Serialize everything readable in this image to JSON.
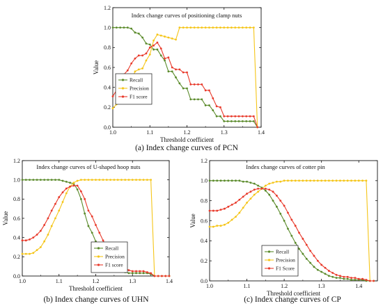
{
  "colors": {
    "recall": "#5a8a2a",
    "precision": "#f5c518",
    "f1": "#e8392a"
  },
  "chart_data": [
    {
      "type": "line",
      "title": "Index change curves of positioning clamp nuts",
      "caption": "(a) Index change curves of PCN",
      "xlabel": "Threshold coefficient",
      "ylabel": "Value",
      "xlim": [
        1.0,
        1.4
      ],
      "ylim": [
        0.0,
        1.2
      ],
      "xticks": [
        "1.0",
        "1.1",
        "1.2",
        "1.3",
        "1.4"
      ],
      "yticks": [
        "0.0",
        "0.2",
        "0.4",
        "0.6",
        "0.8",
        "1.0",
        "1.2"
      ],
      "legend_position": "left-middle",
      "grid": false,
      "series": [
        {
          "name": "Recall",
          "color_key": "recall",
          "x": [
            1.0,
            1.01,
            1.02,
            1.03,
            1.04,
            1.05,
            1.06,
            1.07,
            1.08,
            1.09,
            1.1,
            1.11,
            1.12,
            1.13,
            1.14,
            1.15,
            1.16,
            1.17,
            1.18,
            1.19,
            1.2,
            1.21,
            1.22,
            1.23,
            1.24,
            1.25,
            1.26,
            1.27,
            1.28,
            1.29,
            1.3,
            1.31,
            1.32,
            1.33,
            1.34,
            1.35,
            1.36,
            1.37,
            1.38,
            1.39
          ],
          "y": [
            1.0,
            1.0,
            1.0,
            1.0,
            1.0,
            0.99,
            0.95,
            0.94,
            0.9,
            0.84,
            0.83,
            0.78,
            0.78,
            0.72,
            0.67,
            0.56,
            0.56,
            0.5,
            0.44,
            0.39,
            0.39,
            0.28,
            0.28,
            0.28,
            0.28,
            0.22,
            0.22,
            0.17,
            0.11,
            0.11,
            0.06,
            0.06,
            0.06,
            0.06,
            0.06,
            0.06,
            0.06,
            0.06,
            0.06,
            0.0
          ]
        },
        {
          "name": "Precision",
          "color_key": "precision",
          "x": [
            1.0,
            1.01,
            1.02,
            1.03,
            1.04,
            1.05,
            1.06,
            1.07,
            1.08,
            1.09,
            1.1,
            1.11,
            1.12,
            1.13,
            1.14,
            1.15,
            1.16,
            1.17,
            1.18,
            1.19,
            1.2,
            1.21,
            1.22,
            1.23,
            1.24,
            1.25,
            1.26,
            1.27,
            1.28,
            1.29,
            1.3,
            1.31,
            1.32,
            1.33,
            1.34,
            1.35,
            1.36,
            1.37,
            1.38,
            1.39
          ],
          "y": [
            0.19,
            0.23,
            0.29,
            0.37,
            0.4,
            0.47,
            0.56,
            0.58,
            0.59,
            0.67,
            0.73,
            0.87,
            0.93,
            0.92,
            0.91,
            0.9,
            0.89,
            0.88,
            1.0,
            1.0,
            1.0,
            1.0,
            1.0,
            1.0,
            1.0,
            1.0,
            1.0,
            1.0,
            1.0,
            1.0,
            1.0,
            1.0,
            1.0,
            1.0,
            1.0,
            1.0,
            1.0,
            1.0,
            1.0,
            0.0
          ]
        },
        {
          "name": "F1 score",
          "color_key": "f1",
          "x": [
            1.0,
            1.01,
            1.02,
            1.03,
            1.04,
            1.05,
            1.06,
            1.07,
            1.08,
            1.09,
            1.1,
            1.11,
            1.12,
            1.13,
            1.14,
            1.15,
            1.16,
            1.17,
            1.18,
            1.19,
            1.2,
            1.21,
            1.22,
            1.23,
            1.24,
            1.25,
            1.26,
            1.27,
            1.28,
            1.29,
            1.3,
            1.31,
            1.32,
            1.33,
            1.34,
            1.35,
            1.36,
            1.37,
            1.38,
            1.39
          ],
          "y": [
            0.31,
            0.37,
            0.44,
            0.53,
            0.57,
            0.64,
            0.69,
            0.72,
            0.72,
            0.74,
            0.8,
            0.82,
            0.85,
            0.79,
            0.69,
            0.7,
            0.6,
            0.58,
            0.58,
            0.55,
            0.55,
            0.43,
            0.43,
            0.43,
            0.43,
            0.37,
            0.37,
            0.29,
            0.21,
            0.2,
            0.11,
            0.11,
            0.11,
            0.11,
            0.11,
            0.11,
            0.11,
            0.11,
            0.11,
            0.0
          ]
        }
      ]
    },
    {
      "type": "line",
      "title": "Index change curves of U-shaped hoop nuts",
      "caption": "(b) Index change curves of UHN",
      "xlabel": "Threshold coefficient",
      "ylabel": "Value",
      "xlim": [
        1.0,
        1.4
      ],
      "ylim": [
        0.0,
        1.2
      ],
      "xticks": [
        "1.0",
        "1.1",
        "1.2",
        "1.3",
        "1.4"
      ],
      "yticks": [
        "0.0",
        "0.2",
        "0.4",
        "0.6",
        "0.8",
        "1.0",
        "1.2"
      ],
      "legend_position": "bottom-right",
      "grid": false,
      "series": [
        {
          "name": "Recall",
          "color_key": "recall",
          "x": [
            1.0,
            1.01,
            1.02,
            1.03,
            1.04,
            1.05,
            1.06,
            1.07,
            1.08,
            1.09,
            1.1,
            1.11,
            1.12,
            1.13,
            1.14,
            1.15,
            1.16,
            1.17,
            1.18,
            1.19,
            1.2,
            1.21,
            1.22,
            1.23,
            1.24,
            1.25,
            1.26,
            1.27,
            1.28,
            1.29,
            1.3,
            1.31,
            1.32,
            1.33,
            1.34,
            1.35,
            1.36,
            1.37,
            1.38,
            1.39,
            1.4
          ],
          "y": [
            1.0,
            1.0,
            1.0,
            1.0,
            1.0,
            1.0,
            1.0,
            1.0,
            1.0,
            1.0,
            1.0,
            0.99,
            0.98,
            0.97,
            0.96,
            0.9,
            0.8,
            0.65,
            0.52,
            0.45,
            0.36,
            0.3,
            0.23,
            0.18,
            0.14,
            0.1,
            0.07,
            0.05,
            0.04,
            0.03,
            0.03,
            0.03,
            0.03,
            0.03,
            0.03,
            0.02,
            0.0,
            0.0,
            0.0,
            0.0,
            0.0
          ]
        },
        {
          "name": "Precision",
          "color_key": "precision",
          "x": [
            1.0,
            1.01,
            1.02,
            1.03,
            1.04,
            1.05,
            1.06,
            1.07,
            1.08,
            1.09,
            1.1,
            1.11,
            1.12,
            1.13,
            1.14,
            1.15,
            1.16,
            1.17,
            1.18,
            1.19,
            1.2,
            1.21,
            1.22,
            1.23,
            1.24,
            1.25,
            1.26,
            1.27,
            1.28,
            1.29,
            1.3,
            1.31,
            1.32,
            1.33,
            1.34,
            1.35,
            1.36,
            1.37,
            1.38,
            1.39,
            1.4
          ],
          "y": [
            0.23,
            0.23,
            0.23,
            0.24,
            0.27,
            0.3,
            0.36,
            0.43,
            0.52,
            0.6,
            0.68,
            0.77,
            0.86,
            0.93,
            0.97,
            0.99,
            1.0,
            1.0,
            1.0,
            1.0,
            1.0,
            1.0,
            1.0,
            1.0,
            1.0,
            1.0,
            1.0,
            1.0,
            1.0,
            1.0,
            1.0,
            1.0,
            1.0,
            1.0,
            1.0,
            1.0,
            0.0,
            0.0,
            0.0,
            0.0,
            0.0
          ]
        },
        {
          "name": "F1 score",
          "color_key": "f1",
          "x": [
            1.0,
            1.01,
            1.02,
            1.03,
            1.04,
            1.05,
            1.06,
            1.07,
            1.08,
            1.09,
            1.1,
            1.11,
            1.12,
            1.13,
            1.14,
            1.15,
            1.16,
            1.17,
            1.18,
            1.19,
            1.2,
            1.21,
            1.22,
            1.23,
            1.24,
            1.25,
            1.26,
            1.27,
            1.28,
            1.29,
            1.3,
            1.31,
            1.32,
            1.33,
            1.34,
            1.35,
            1.36,
            1.37,
            1.38,
            1.39,
            1.4
          ],
          "y": [
            0.37,
            0.37,
            0.38,
            0.4,
            0.43,
            0.47,
            0.53,
            0.6,
            0.68,
            0.75,
            0.82,
            0.87,
            0.91,
            0.93,
            0.94,
            0.94,
            0.88,
            0.8,
            0.68,
            0.62,
            0.53,
            0.45,
            0.37,
            0.3,
            0.25,
            0.19,
            0.14,
            0.1,
            0.08,
            0.06,
            0.05,
            0.05,
            0.05,
            0.05,
            0.04,
            0.03,
            0.0,
            0.0,
            0.0,
            0.0,
            0.0
          ]
        }
      ]
    },
    {
      "type": "line",
      "title": "Index change curves of cotter pin",
      "caption": "(c) Index change curves of CP",
      "xlabel": "Threshold coefficient",
      "ylabel": "Value",
      "xlim": [
        1.0,
        1.45
      ],
      "ylim": [
        0.0,
        1.2
      ],
      "xticks": [
        "1.0",
        "1.1",
        "1.2",
        "1.3",
        "1.4"
      ],
      "yticks": [
        "0.0",
        "0.2",
        "0.4",
        "0.6",
        "0.8",
        "1.0",
        "1.2"
      ],
      "legend_position": "bottom-left",
      "grid": false,
      "series": [
        {
          "name": "Recall",
          "color_key": "recall",
          "x": [
            1.0,
            1.01,
            1.02,
            1.03,
            1.04,
            1.05,
            1.06,
            1.07,
            1.08,
            1.09,
            1.1,
            1.11,
            1.12,
            1.13,
            1.14,
            1.15,
            1.16,
            1.17,
            1.18,
            1.19,
            1.2,
            1.21,
            1.22,
            1.23,
            1.24,
            1.25,
            1.26,
            1.27,
            1.28,
            1.29,
            1.3,
            1.31,
            1.32,
            1.33,
            1.34,
            1.35,
            1.36,
            1.37,
            1.38,
            1.39,
            1.4,
            1.41,
            1.42,
            1.43,
            1.44
          ],
          "y": [
            1.0,
            1.0,
            1.0,
            1.0,
            1.0,
            1.0,
            1.0,
            1.0,
            1.0,
            0.99,
            0.99,
            0.98,
            0.97,
            0.95,
            0.93,
            0.9,
            0.86,
            0.8,
            0.74,
            0.67,
            0.6,
            0.52,
            0.45,
            0.38,
            0.32,
            0.27,
            0.22,
            0.18,
            0.14,
            0.11,
            0.09,
            0.07,
            0.05,
            0.04,
            0.03,
            0.03,
            0.02,
            0.02,
            0.01,
            0.01,
            0.01,
            0.01,
            0.0,
            0.0,
            0.0
          ]
        },
        {
          "name": "Precision",
          "color_key": "precision",
          "x": [
            1.0,
            1.01,
            1.02,
            1.03,
            1.04,
            1.05,
            1.06,
            1.07,
            1.08,
            1.09,
            1.1,
            1.11,
            1.12,
            1.13,
            1.14,
            1.15,
            1.16,
            1.17,
            1.18,
            1.19,
            1.2,
            1.21,
            1.22,
            1.23,
            1.24,
            1.25,
            1.26,
            1.27,
            1.28,
            1.29,
            1.3,
            1.31,
            1.32,
            1.33,
            1.34,
            1.35,
            1.36,
            1.37,
            1.38,
            1.39,
            1.4,
            1.41,
            1.42,
            1.43,
            1.44
          ],
          "y": [
            0.54,
            0.54,
            0.55,
            0.55,
            0.56,
            0.58,
            0.61,
            0.64,
            0.68,
            0.73,
            0.78,
            0.82,
            0.86,
            0.89,
            0.92,
            0.95,
            0.97,
            0.98,
            0.99,
            0.99,
            1.0,
            1.0,
            1.0,
            1.0,
            1.0,
            1.0,
            1.0,
            1.0,
            1.0,
            1.0,
            1.0,
            1.0,
            1.0,
            1.0,
            1.0,
            1.0,
            1.0,
            1.0,
            1.0,
            1.0,
            1.0,
            1.0,
            1.0,
            0.0,
            0.0
          ]
        },
        {
          "name": "F1 Score",
          "color_key": "f1",
          "x": [
            1.0,
            1.01,
            1.02,
            1.03,
            1.04,
            1.05,
            1.06,
            1.07,
            1.08,
            1.09,
            1.1,
            1.11,
            1.12,
            1.13,
            1.14,
            1.15,
            1.16,
            1.17,
            1.18,
            1.19,
            1.2,
            1.21,
            1.22,
            1.23,
            1.24,
            1.25,
            1.26,
            1.27,
            1.28,
            1.29,
            1.3,
            1.31,
            1.32,
            1.33,
            1.34,
            1.35,
            1.36,
            1.37,
            1.38,
            1.39,
            1.4,
            1.41,
            1.42,
            1.43,
            1.44
          ],
          "y": [
            0.7,
            0.7,
            0.7,
            0.71,
            0.72,
            0.74,
            0.76,
            0.78,
            0.81,
            0.84,
            0.87,
            0.89,
            0.91,
            0.92,
            0.92,
            0.92,
            0.91,
            0.89,
            0.85,
            0.8,
            0.75,
            0.68,
            0.61,
            0.55,
            0.48,
            0.42,
            0.36,
            0.3,
            0.25,
            0.2,
            0.16,
            0.13,
            0.1,
            0.08,
            0.06,
            0.05,
            0.04,
            0.04,
            0.03,
            0.03,
            0.02,
            0.02,
            0.01,
            0.0,
            0.0
          ]
        }
      ]
    }
  ]
}
